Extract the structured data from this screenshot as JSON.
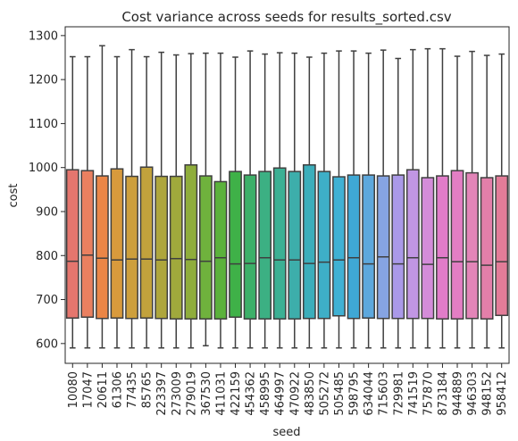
{
  "chart_data": {
    "type": "box",
    "title": "Cost variance across seeds for results_sorted.csv",
    "xlabel": "seed",
    "ylabel": "cost",
    "ylim": [
      555,
      1320
    ],
    "yticks": [
      600,
      700,
      800,
      900,
      1000,
      1100,
      1200,
      1300
    ],
    "grid": false,
    "legend": "none",
    "categories": [
      "10080",
      "17047",
      "20611",
      "61306",
      "77435",
      "85765",
      "223397",
      "273009",
      "279019",
      "367530",
      "411031",
      "422159",
      "454362",
      "458995",
      "464997",
      "470922",
      "483850",
      "505272",
      "505485",
      "598795",
      "634044",
      "715603",
      "729981",
      "741519",
      "757870",
      "873184",
      "944889",
      "946303",
      "948152",
      "958412"
    ],
    "colors": [
      "#e5766e",
      "#ea8060",
      "#eb8647",
      "#d89a3c",
      "#cd9f3c",
      "#c2a23c",
      "#aea63c",
      "#a0a93c",
      "#8fad3c",
      "#6fb23d",
      "#5bb23c",
      "#3fb148",
      "#3db069",
      "#3cb083",
      "#3cb094",
      "#3daeab",
      "#3caebb",
      "#3eafc7",
      "#40b1d3",
      "#3fa8d5",
      "#5da8dd",
      "#86a4e2",
      "#aa99e8",
      "#c196e3",
      "#d48cd9",
      "#e17cc9",
      "#e37ec4",
      "#e385b8",
      "#e37fa9",
      "#e37c98"
    ],
    "boxes": [
      {
        "min": 590,
        "q1": 658,
        "median": 787,
        "q3": 995,
        "max": 1252
      },
      {
        "min": 590,
        "q1": 660,
        "median": 801,
        "q3": 993,
        "max": 1252
      },
      {
        "min": 590,
        "q1": 657,
        "median": 794,
        "q3": 981,
        "max": 1277
      },
      {
        "min": 590,
        "q1": 658,
        "median": 790,
        "q3": 997,
        "max": 1252
      },
      {
        "min": 590,
        "q1": 657,
        "median": 792,
        "q3": 980,
        "max": 1268
      },
      {
        "min": 590,
        "q1": 658,
        "median": 792,
        "q3": 1001,
        "max": 1252
      },
      {
        "min": 590,
        "q1": 657,
        "median": 790,
        "q3": 980,
        "max": 1262
      },
      {
        "min": 590,
        "q1": 656,
        "median": 793,
        "q3": 980,
        "max": 1256
      },
      {
        "min": 590,
        "q1": 656,
        "median": 791,
        "q3": 1006,
        "max": 1259
      },
      {
        "min": 595,
        "q1": 656,
        "median": 787,
        "q3": 981,
        "max": 1260
      },
      {
        "min": 590,
        "q1": 656,
        "median": 795,
        "q3": 968,
        "max": 1260
      },
      {
        "min": 590,
        "q1": 660,
        "median": 781,
        "q3": 991,
        "max": 1251
      },
      {
        "min": 590,
        "q1": 656,
        "median": 782,
        "q3": 983,
        "max": 1265
      },
      {
        "min": 590,
        "q1": 656,
        "median": 795,
        "q3": 991,
        "max": 1258
      },
      {
        "min": 590,
        "q1": 656,
        "median": 790,
        "q3": 999,
        "max": 1261
      },
      {
        "min": 590,
        "q1": 656,
        "median": 790,
        "q3": 991,
        "max": 1260
      },
      {
        "min": 590,
        "q1": 657,
        "median": 782,
        "q3": 1006,
        "max": 1251
      },
      {
        "min": 590,
        "q1": 657,
        "median": 785,
        "q3": 991,
        "max": 1260
      },
      {
        "min": 590,
        "q1": 663,
        "median": 790,
        "q3": 979,
        "max": 1265
      },
      {
        "min": 590,
        "q1": 657,
        "median": 795,
        "q3": 983,
        "max": 1265
      },
      {
        "min": 590,
        "q1": 658,
        "median": 781,
        "q3": 983,
        "max": 1260
      },
      {
        "min": 590,
        "q1": 657,
        "median": 797,
        "q3": 981,
        "max": 1267
      },
      {
        "min": 590,
        "q1": 657,
        "median": 781,
        "q3": 983,
        "max": 1248
      },
      {
        "min": 590,
        "q1": 657,
        "median": 795,
        "q3": 995,
        "max": 1268
      },
      {
        "min": 590,
        "q1": 657,
        "median": 780,
        "q3": 977,
        "max": 1270
      },
      {
        "min": 590,
        "q1": 656,
        "median": 795,
        "q3": 981,
        "max": 1270
      },
      {
        "min": 590,
        "q1": 656,
        "median": 786,
        "q3": 993,
        "max": 1253
      },
      {
        "min": 590,
        "q1": 657,
        "median": 786,
        "q3": 988,
        "max": 1264
      },
      {
        "min": 590,
        "q1": 656,
        "median": 778,
        "q3": 977,
        "max": 1255
      },
      {
        "min": 590,
        "q1": 664,
        "median": 786,
        "q3": 981,
        "max": 1258
      }
    ]
  }
}
